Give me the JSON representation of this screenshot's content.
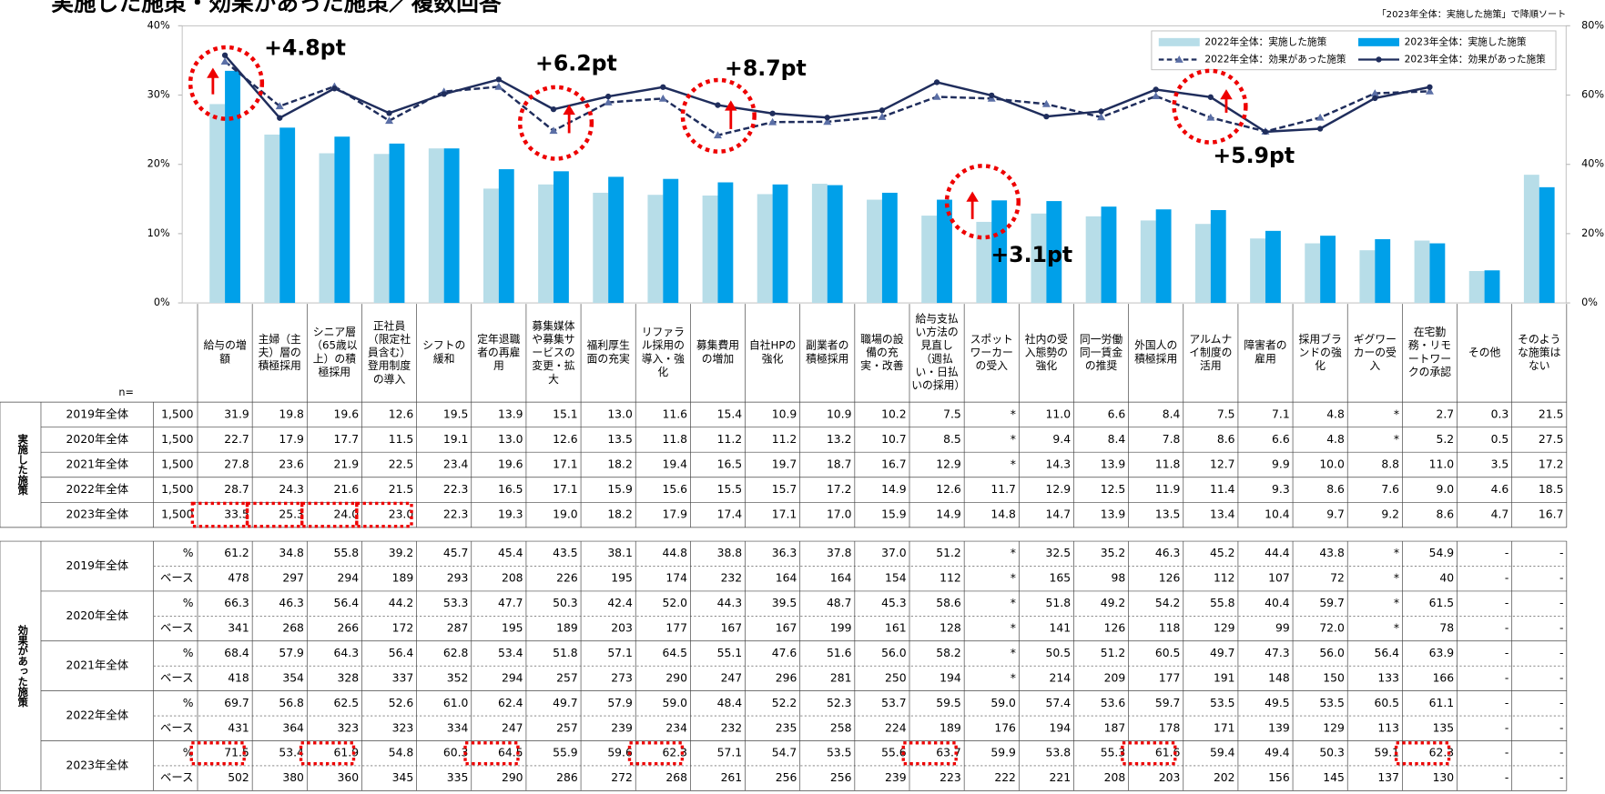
{
  "header": {
    "title": "実施した施策・効果があった施策／複数回答",
    "note": "「2023年全体：実施した施策」で降順ソート"
  },
  "chart_data": {
    "type": "bar",
    "categories": [
      "給与の増額",
      "主婦（主夫）層の積極採用",
      "シニア層（65歳以上）の積極採用",
      "正社員（限定社員含む）登用制度の導入",
      "シフトの緩和",
      "定年退職者の再雇用",
      "募集媒体や募集サービスの変更・拡大",
      "福利厚生面の充実",
      "リファラル採用の導入・強化",
      "募集費用の増加",
      "自社HPの強化",
      "副業者の積極採用",
      "職場の設備の充実・改善",
      "給与支払い方法の見直し（週払い・日払いの採用）",
      "スポットワーカーの受入",
      "社内の受入態勢の強化",
      "同一労働同一賃金の推奨",
      "外国人の積極採用",
      "アルムナイ制度の活用",
      "障害者の雇用",
      "採用ブランドの強化",
      "ギグワーカーの受入",
      "在宅勤務・リモートワークの承認",
      "その他",
      "そのような施策はない"
    ],
    "series": [
      {
        "name": "2022年全体：実施した施策",
        "type": "bar",
        "color": "#b7dde8",
        "values": [
          28.7,
          24.3,
          21.6,
          21.5,
          22.3,
          16.5,
          17.1,
          15.9,
          15.6,
          15.5,
          15.7,
          17.2,
          14.9,
          12.6,
          11.7,
          12.9,
          12.5,
          11.9,
          11.4,
          9.3,
          8.6,
          7.6,
          9.0,
          4.6,
          18.5
        ]
      },
      {
        "name": "2023年全体：実施した施策",
        "type": "bar",
        "color": "#00a0e9",
        "values": [
          33.5,
          25.3,
          24.0,
          23.0,
          22.3,
          19.3,
          19.0,
          18.2,
          17.9,
          17.4,
          17.1,
          17.0,
          15.9,
          14.9,
          14.8,
          14.7,
          13.9,
          13.5,
          13.4,
          10.4,
          9.7,
          9.2,
          8.6,
          4.7,
          16.7
        ]
      },
      {
        "name": "2022年全体：効果があった施策",
        "type": "line",
        "axis": "y2",
        "color": "#1f2d5c",
        "dashed": true,
        "marker": "triangle",
        "values": [
          69.7,
          56.8,
          62.5,
          52.6,
          61.0,
          62.4,
          49.7,
          57.9,
          59.0,
          48.4,
          52.2,
          52.3,
          53.7,
          59.5,
          59.0,
          57.4,
          53.6,
          59.7,
          53.5,
          49.5,
          53.5,
          60.5,
          61.1,
          null,
          null
        ]
      },
      {
        "name": "2023年全体：効果があった施策",
        "type": "line",
        "axis": "y2",
        "color": "#1f2d5c",
        "dashed": false,
        "marker": "circle",
        "values": [
          71.5,
          53.4,
          61.9,
          54.8,
          60.3,
          64.5,
          55.9,
          59.6,
          62.3,
          57.1,
          54.7,
          53.5,
          55.6,
          63.7,
          59.9,
          53.8,
          55.3,
          61.6,
          59.4,
          49.4,
          50.3,
          59.1,
          62.3,
          null,
          null
        ]
      }
    ],
    "ylim": [
      0,
      40
    ],
    "yticks": [
      {
        "value": 0,
        "label": "0%"
      },
      {
        "value": 10,
        "label": "10%"
      },
      {
        "value": 20,
        "label": "20%"
      },
      {
        "value": 30,
        "label": "30%"
      },
      {
        "value": 40,
        "label": "40%"
      }
    ],
    "y2lim": [
      0,
      80
    ],
    "y2ticks": [
      {
        "value": 0,
        "label": "0%"
      },
      {
        "value": 20,
        "label": "20%"
      },
      {
        "value": 40,
        "label": "40%"
      },
      {
        "value": 60,
        "label": "60%"
      },
      {
        "value": 80,
        "label": "80%"
      }
    ],
    "annotations": [
      "+4.8pt",
      "+6.2pt",
      "+8.7pt",
      "+5.9pt",
      "+3.1pt"
    ]
  },
  "table": {
    "n_label": "n=",
    "implemented": {
      "label": "実施した施策",
      "rows": [
        {
          "year": "2019年全体",
          "n": "1,500",
          "values": [
            "31.9",
            "19.8",
            "19.6",
            "12.6",
            "19.5",
            "13.9",
            "15.1",
            "13.0",
            "11.6",
            "15.4",
            "10.9",
            "10.9",
            "10.2",
            "7.5",
            "*",
            "11.0",
            "6.6",
            "8.4",
            "7.5",
            "7.1",
            "4.8",
            "*",
            "2.7",
            "0.3",
            "21.5"
          ]
        },
        {
          "year": "2020年全体",
          "n": "1,500",
          "values": [
            "22.7",
            "17.9",
            "17.7",
            "11.5",
            "19.1",
            "13.0",
            "12.6",
            "13.5",
            "11.8",
            "11.2",
            "11.2",
            "13.2",
            "10.7",
            "8.5",
            "*",
            "9.4",
            "8.4",
            "7.8",
            "8.6",
            "6.6",
            "4.8",
            "*",
            "5.2",
            "0.5",
            "27.5"
          ]
        },
        {
          "year": "2021年全体",
          "n": "1,500",
          "values": [
            "27.8",
            "23.6",
            "21.9",
            "22.5",
            "23.4",
            "19.6",
            "17.1",
            "18.2",
            "19.4",
            "16.5",
            "19.7",
            "18.7",
            "16.7",
            "12.9",
            "*",
            "14.3",
            "13.9",
            "11.8",
            "12.7",
            "9.9",
            "10.0",
            "8.8",
            "11.0",
            "3.5",
            "17.2"
          ]
        },
        {
          "year": "2022年全体",
          "n": "1,500",
          "values": [
            "28.7",
            "24.3",
            "21.6",
            "21.5",
            "22.3",
            "16.5",
            "17.1",
            "15.9",
            "15.6",
            "15.5",
            "15.7",
            "17.2",
            "14.9",
            "12.6",
            "11.7",
            "12.9",
            "12.5",
            "11.9",
            "11.4",
            "9.3",
            "8.6",
            "7.6",
            "9.0",
            "4.6",
            "18.5"
          ]
        },
        {
          "year": "2023年全体",
          "n": "1,500",
          "values": [
            "33.5",
            "25.3",
            "24.0",
            "23.0",
            "22.3",
            "19.3",
            "19.0",
            "18.2",
            "17.9",
            "17.4",
            "17.1",
            "17.0",
            "15.9",
            "14.9",
            "14.8",
            "14.7",
            "13.9",
            "13.5",
            "13.4",
            "10.4",
            "9.7",
            "9.2",
            "8.6",
            "4.7",
            "16.7"
          ]
        }
      ]
    },
    "effective": {
      "label": "効果があった施策",
      "rows": [
        {
          "year": "2019年全体",
          "pct_label": "%",
          "base_label": "ベース",
          "pct": [
            "61.2",
            "34.8",
            "55.8",
            "39.2",
            "45.7",
            "45.4",
            "43.5",
            "38.1",
            "44.8",
            "38.8",
            "36.3",
            "37.8",
            "37.0",
            "51.2",
            "*",
            "32.5",
            "35.2",
            "46.3",
            "45.2",
            "44.4",
            "43.8",
            "*",
            "54.9",
            "-",
            "-"
          ],
          "base": [
            "478",
            "297",
            "294",
            "189",
            "293",
            "208",
            "226",
            "195",
            "174",
            "232",
            "164",
            "164",
            "154",
            "112",
            "*",
            "165",
            "98",
            "126",
            "112",
            "107",
            "72",
            "*",
            "40",
            "-",
            "-"
          ]
        },
        {
          "year": "2020年全体",
          "pct_label": "%",
          "base_label": "ベース",
          "pct": [
            "66.3",
            "46.3",
            "56.4",
            "44.2",
            "53.3",
            "47.7",
            "50.3",
            "42.4",
            "52.0",
            "44.3",
            "39.5",
            "48.7",
            "45.3",
            "58.6",
            "*",
            "51.8",
            "49.2",
            "54.2",
            "55.8",
            "40.4",
            "59.7",
            "*",
            "61.5",
            "-",
            "-"
          ],
          "base": [
            "341",
            "268",
            "266",
            "172",
            "287",
            "195",
            "189",
            "203",
            "177",
            "167",
            "167",
            "199",
            "161",
            "128",
            "*",
            "141",
            "126",
            "118",
            "129",
            "99",
            "72.0",
            "*",
            "78",
            "-",
            "-"
          ]
        },
        {
          "year": "2021年全体",
          "pct_label": "%",
          "base_label": "ベース",
          "pct": [
            "68.4",
            "57.9",
            "64.3",
            "56.4",
            "62.8",
            "53.4",
            "51.8",
            "57.1",
            "64.5",
            "55.1",
            "47.6",
            "51.6",
            "56.0",
            "58.2",
            "*",
            "50.5",
            "51.2",
            "60.5",
            "49.7",
            "47.3",
            "56.0",
            "56.4",
            "63.9",
            "-",
            "-"
          ],
          "base": [
            "418",
            "354",
            "328",
            "337",
            "352",
            "294",
            "257",
            "273",
            "290",
            "247",
            "296",
            "281",
            "250",
            "194",
            "*",
            "214",
            "209",
            "177",
            "191",
            "148",
            "150",
            "133",
            "166",
            "-",
            "-"
          ]
        },
        {
          "year": "2022年全体",
          "pct_label": "%",
          "base_label": "ベース",
          "pct": [
            "69.7",
            "56.8",
            "62.5",
            "52.6",
            "61.0",
            "62.4",
            "49.7",
            "57.9",
            "59.0",
            "48.4",
            "52.2",
            "52.3",
            "53.7",
            "59.5",
            "59.0",
            "57.4",
            "53.6",
            "59.7",
            "53.5",
            "49.5",
            "53.5",
            "60.5",
            "61.1",
            "-",
            "-"
          ],
          "base": [
            "431",
            "364",
            "323",
            "323",
            "334",
            "247",
            "257",
            "239",
            "234",
            "232",
            "235",
            "258",
            "224",
            "189",
            "176",
            "194",
            "187",
            "178",
            "171",
            "139",
            "129",
            "113",
            "135",
            "-",
            "-"
          ]
        },
        {
          "year": "2023年全体",
          "pct_label": "%",
          "base_label": "ベース",
          "pct": [
            "71.5",
            "53.4",
            "61.9",
            "54.8",
            "60.3",
            "64.5",
            "55.9",
            "59.6",
            "62.3",
            "57.1",
            "54.7",
            "53.5",
            "55.6",
            "63.7",
            "59.9",
            "53.8",
            "55.3",
            "61.6",
            "59.4",
            "49.4",
            "50.3",
            "59.1",
            "62.3",
            "-",
            "-"
          ],
          "base": [
            "502",
            "380",
            "360",
            "345",
            "335",
            "290",
            "286",
            "272",
            "268",
            "261",
            "256",
            "256",
            "239",
            "223",
            "222",
            "221",
            "208",
            "203",
            "202",
            "156",
            "145",
            "137",
            "130",
            "-",
            "-"
          ]
        }
      ]
    }
  }
}
